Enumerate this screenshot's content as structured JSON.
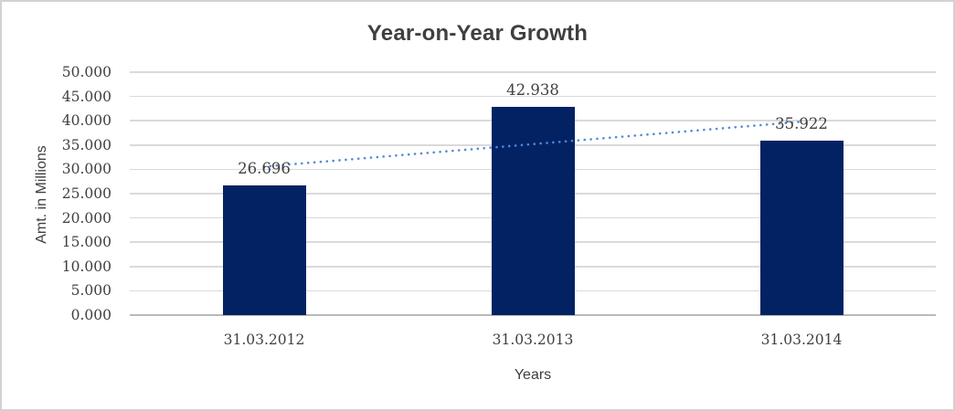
{
  "chart_data": {
    "type": "bar",
    "title": "Year-on-Year Growth",
    "xlabel": "Years",
    "ylabel": "Amt. in Millions",
    "categories": [
      "31.03.2012",
      "31.03.2013",
      "31.03.2014"
    ],
    "values": [
      26.696,
      42.938,
      35.922
    ],
    "data_labels": [
      "26.696",
      "42.938",
      "35.922"
    ],
    "ylim": [
      0,
      50
    ],
    "ytick_step": 5,
    "ytick_labels": [
      "0.000",
      "5.000",
      "10.000",
      "15.000",
      "20.000",
      "25.000",
      "30.000",
      "35.000",
      "40.000",
      "45.000",
      "50.000"
    ],
    "grid": true,
    "legend": "none",
    "trendline": {
      "type": "linear",
      "style": "dotted",
      "start_value": 30.572,
      "end_value": 39.798
    },
    "colors": {
      "bar": "#032264",
      "trendline": "#5289d8",
      "gridline": "#dadada",
      "axis_line": "#b9b9b9",
      "text": "#404040",
      "title": "#3f3f3f",
      "background": "#ffffff",
      "border": "#d2d2d2"
    }
  }
}
